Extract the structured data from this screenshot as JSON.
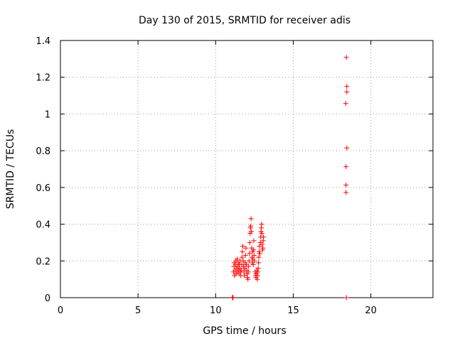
{
  "chart_data": {
    "type": "scatter",
    "title": "Day 130 of 2015, SRMTID for receiver adis",
    "xlabel": "GPS time / hours",
    "ylabel": "SRMTID / TECUs",
    "xlim": [
      0,
      24
    ],
    "ylim": [
      0,
      1.4
    ],
    "xticks": [
      0,
      5,
      10,
      15,
      20
    ],
    "yticks": [
      0,
      0.2,
      0.4,
      0.6,
      0.8,
      1,
      1.2,
      1.4
    ],
    "xtick_labels": [
      "0",
      "5",
      "10",
      "15",
      "20"
    ],
    "ytick_labels": [
      "0",
      "0.2",
      "0.4",
      "0.6",
      "0.8",
      "1",
      "1.2",
      "1.4"
    ],
    "grid": true,
    "marker": "plus",
    "color": "#ff0000",
    "series": [
      {
        "name": "SRMTID",
        "points": [
          [
            11.08,
            0.0
          ],
          [
            11.12,
            0.0
          ],
          [
            11.1,
            0.002
          ],
          [
            11.15,
            0.14
          ],
          [
            11.18,
            0.17
          ],
          [
            11.2,
            0.19
          ],
          [
            11.22,
            0.12
          ],
          [
            11.25,
            0.15
          ],
          [
            11.28,
            0.18
          ],
          [
            11.3,
            0.2
          ],
          [
            11.32,
            0.13
          ],
          [
            11.35,
            0.16
          ],
          [
            11.38,
            0.21
          ],
          [
            11.4,
            0.14
          ],
          [
            11.42,
            0.17
          ],
          [
            11.45,
            0.19
          ],
          [
            11.48,
            0.15
          ],
          [
            11.5,
            0.13
          ],
          [
            11.52,
            0.18
          ],
          [
            11.55,
            0.16
          ],
          [
            11.58,
            0.2
          ],
          [
            11.6,
            0.14
          ],
          [
            11.62,
            0.12
          ],
          [
            11.65,
            0.15
          ],
          [
            11.68,
            0.18
          ],
          [
            11.7,
            0.22
          ],
          [
            11.72,
            0.25
          ],
          [
            11.75,
            0.28
          ],
          [
            11.78,
            0.2
          ],
          [
            11.8,
            0.17
          ],
          [
            11.82,
            0.14
          ],
          [
            11.85,
            0.12
          ],
          [
            11.88,
            0.16
          ],
          [
            11.9,
            0.19
          ],
          [
            11.92,
            0.23
          ],
          [
            11.95,
            0.27
          ],
          [
            11.98,
            0.18
          ],
          [
            12.0,
            0.15
          ],
          [
            12.02,
            0.13
          ],
          [
            12.05,
            0.11
          ],
          [
            12.08,
            0.1
          ],
          [
            12.1,
            0.14
          ],
          [
            12.12,
            0.17
          ],
          [
            12.15,
            0.2
          ],
          [
            12.18,
            0.24
          ],
          [
            12.2,
            0.3
          ],
          [
            12.22,
            0.35
          ],
          [
            12.24,
            0.38
          ],
          [
            12.26,
            0.39
          ],
          [
            12.28,
            0.43
          ],
          [
            12.3,
            0.36
          ],
          [
            12.32,
            0.27
          ],
          [
            12.34,
            0.22
          ],
          [
            12.36,
            0.19
          ],
          [
            12.38,
            0.25
          ],
          [
            12.4,
            0.21
          ],
          [
            12.42,
            0.18
          ],
          [
            12.44,
            0.26
          ],
          [
            12.46,
            0.31
          ],
          [
            12.48,
            0.23
          ],
          [
            12.5,
            0.2
          ],
          [
            12.55,
            0.14
          ],
          [
            12.58,
            0.12
          ],
          [
            12.6,
            0.11
          ],
          [
            12.62,
            0.13
          ],
          [
            12.65,
            0.15
          ],
          [
            12.68,
            0.1
          ],
          [
            12.7,
            0.12
          ],
          [
            12.72,
            0.14
          ],
          [
            12.74,
            0.16
          ],
          [
            12.76,
            0.19
          ],
          [
            12.78,
            0.22
          ],
          [
            12.8,
            0.25
          ],
          [
            12.82,
            0.28
          ],
          [
            12.85,
            0.24
          ],
          [
            12.88,
            0.3
          ],
          [
            12.9,
            0.33
          ],
          [
            12.92,
            0.36
          ],
          [
            12.94,
            0.38
          ],
          [
            12.96,
            0.4
          ],
          [
            12.98,
            0.35
          ],
          [
            13.0,
            0.29
          ],
          [
            13.02,
            0.26
          ],
          [
            13.04,
            0.27
          ],
          [
            13.06,
            0.31
          ],
          [
            13.08,
            0.33
          ],
          [
            18.42,
            0.0
          ],
          [
            18.4,
            0.573
          ],
          [
            18.4,
            0.613
          ],
          [
            18.4,
            0.713
          ],
          [
            18.45,
            0.815
          ],
          [
            18.38,
            1.057
          ],
          [
            18.45,
            1.12
          ],
          [
            18.45,
            1.15
          ],
          [
            18.42,
            1.308
          ]
        ]
      }
    ]
  }
}
